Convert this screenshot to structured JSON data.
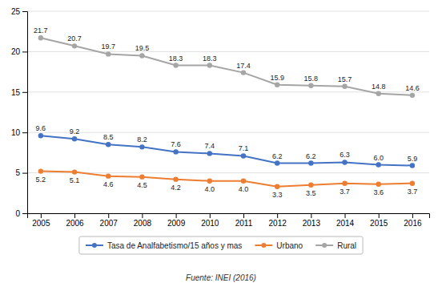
{
  "chart_data": {
    "type": "line",
    "x": [
      2005,
      2006,
      2007,
      2008,
      2009,
      2010,
      2011,
      2012,
      2013,
      2014,
      2015,
      2016
    ],
    "xlim": [
      2004.6,
      2016.5
    ],
    "xticks": [
      2005,
      2006,
      2007,
      2008,
      2009,
      2010,
      2011,
      2012,
      2013,
      2014,
      2015,
      2016
    ],
    "ylim": [
      0,
      25
    ],
    "yticks": [
      0,
      5,
      10,
      15,
      20,
      25
    ],
    "grid": true,
    "legend": "bottom",
    "data_labels": true,
    "marker": "circle",
    "series": [
      {
        "name": "Tasa de Analfabetismo/15 años y mas",
        "color": "#4472C4",
        "values": [
          9.6,
          9.2,
          8.5,
          8.2,
          7.6,
          7.4,
          7.1,
          6.2,
          6.2,
          6.3,
          6.0,
          5.9
        ],
        "value_labels": [
          "9.6",
          "9.2",
          "8.5",
          "8.2",
          "7.6",
          "7.4",
          "7.1",
          "6.2",
          "6.2",
          "6.3",
          "6.0",
          "5.9"
        ]
      },
      {
        "name": "Urbano",
        "color": "#ED7D31",
        "values": [
          5.2,
          5.1,
          4.6,
          4.5,
          4.2,
          4.0,
          4.0,
          3.3,
          3.5,
          3.7,
          3.6,
          3.7
        ],
        "value_labels": [
          "5.2",
          "5.1",
          "4.6",
          "4.5",
          "4.2",
          "4.0",
          "4.0",
          "3.3",
          "3.5",
          "3.7",
          "3.6",
          "3.7"
        ]
      },
      {
        "name": "Rural",
        "color": "#A5A5A5",
        "values": [
          21.7,
          20.7,
          19.7,
          19.5,
          18.3,
          18.3,
          17.4,
          15.9,
          15.8,
          15.7,
          14.8,
          14.6
        ],
        "value_labels": [
          "21.7",
          "20.7",
          "19.7",
          "19.5",
          "18.3",
          "18.3",
          "17.4",
          "15.9",
          "15.8",
          "15.7",
          "14.8",
          "14.6"
        ]
      }
    ],
    "annotations": [
      "Fuente: INEI (2016)"
    ]
  }
}
